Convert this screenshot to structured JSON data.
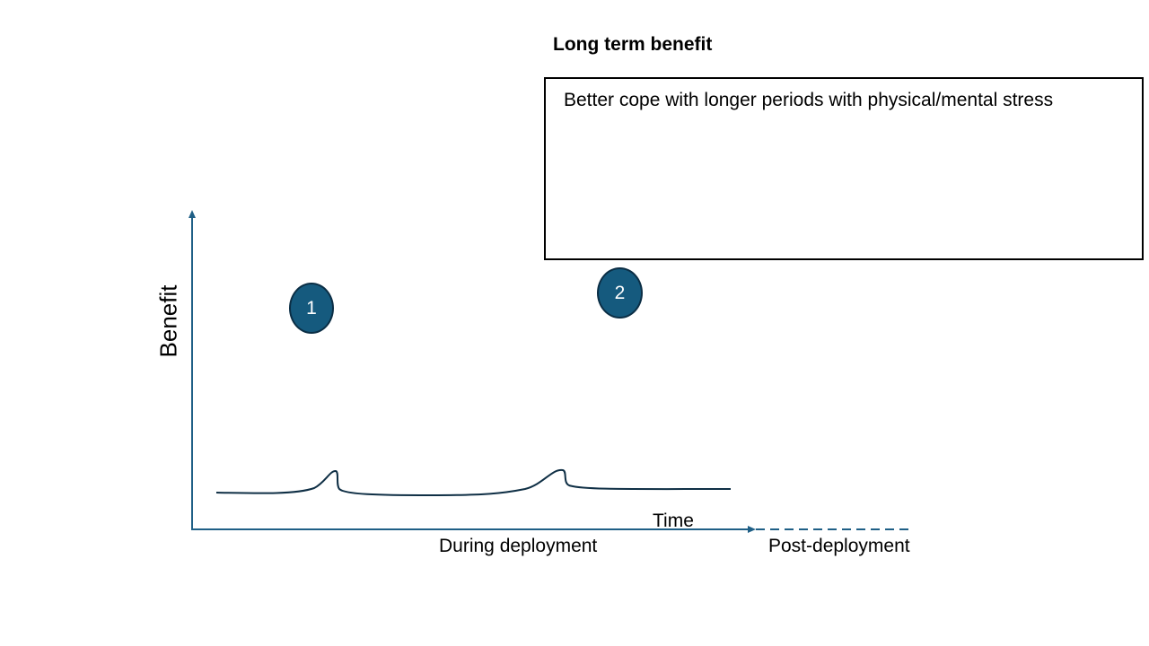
{
  "panel": {
    "title": "Long term benefit",
    "description": "Better cope with longer periods with physical/mental stress"
  },
  "axes": {
    "y_label": "Benefit",
    "x_label": "Time",
    "phase_during": "During deployment",
    "phase_post": "Post-deployment"
  },
  "markers": [
    {
      "label": "1"
    },
    {
      "label": "2"
    }
  ],
  "colors": {
    "axis": "#1f5f86",
    "marker_fill": "#155a7e",
    "marker_border": "#0b2e45",
    "curve": "#0f2f45",
    "box_border": "#000000"
  }
}
